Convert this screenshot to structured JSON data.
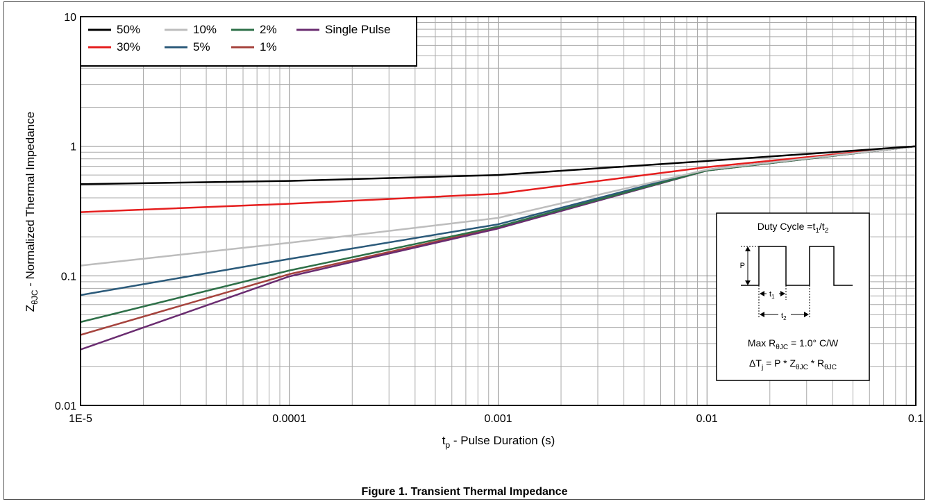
{
  "chart_data": {
    "type": "line",
    "title": "",
    "caption": "Figure 1. Transient Thermal Impedance",
    "xlabel": {
      "main": "t",
      "sub": "p",
      "rest": " - Pulse Duration (s)"
    },
    "ylabel": {
      "main": "Z",
      "sub": "θJC",
      "rest": " - Normalized Thermal Impedance"
    },
    "x_scale": "log",
    "y_scale": "log",
    "xlim": [
      1e-05,
      0.1
    ],
    "ylim": [
      0.01,
      10
    ],
    "x_ticks": [
      {
        "value": 1e-05,
        "label": "1E-5"
      },
      {
        "value": 0.0001,
        "label": "0.0001"
      },
      {
        "value": 0.001,
        "label": "0.001"
      },
      {
        "value": 0.01,
        "label": "0.01"
      },
      {
        "value": 0.1,
        "label": "0.1"
      }
    ],
    "y_ticks": [
      {
        "value": 0.01,
        "label": "0.01"
      },
      {
        "value": 0.1,
        "label": "0.1"
      },
      {
        "value": 1,
        "label": "1"
      },
      {
        "value": 10,
        "label": "10"
      }
    ],
    "grid": true,
    "legend_position": "top-left",
    "series": [
      {
        "name": "50%",
        "color": "#000000",
        "x": [
          1e-05,
          0.0001,
          0.001,
          0.01,
          0.1
        ],
        "y": [
          0.51,
          0.54,
          0.6,
          0.77,
          1.0
        ]
      },
      {
        "name": "10%",
        "color": "#bdbdbd",
        "x": [
          1e-05,
          0.0001,
          0.001,
          0.01,
          0.1
        ],
        "y": [
          0.12,
          0.18,
          0.28,
          0.66,
          1.0
        ]
      },
      {
        "name": "2%",
        "color": "#2e7048",
        "x": [
          1e-05,
          0.0001,
          0.001,
          0.01,
          0.1
        ],
        "y": [
          0.044,
          0.11,
          0.24,
          0.65,
          1.0
        ]
      },
      {
        "name": "Single Pulse",
        "color": "#6a2c70",
        "x": [
          1e-05,
          0.0001,
          0.001,
          0.01,
          0.1
        ],
        "y": [
          0.027,
          0.099,
          0.232,
          0.65,
          1.0
        ]
      },
      {
        "name": "30%",
        "color": "#e51e1e",
        "x": [
          1e-05,
          0.0001,
          0.001,
          0.01,
          0.1
        ],
        "y": [
          0.31,
          0.36,
          0.43,
          0.69,
          1.0
        ]
      },
      {
        "name": "5%",
        "color": "#2b5a7a",
        "x": [
          1e-05,
          0.0001,
          0.001,
          0.01,
          0.1
        ],
        "y": [
          0.071,
          0.135,
          0.25,
          0.66,
          1.0
        ]
      },
      {
        "name": "1%",
        "color": "#a6433d",
        "x": [
          1e-05,
          0.0001,
          0.001,
          0.01,
          0.1
        ],
        "y": [
          0.035,
          0.103,
          0.235,
          0.65,
          1.0
        ]
      }
    ],
    "inset": {
      "duty_cycle": {
        "main": "Duty Cycle =t",
        "s1": "1",
        "mid": "/t",
        "s2": "2"
      },
      "p_label": "P",
      "t1": {
        "main": "t",
        "sub": "1"
      },
      "t2": {
        "main": "t",
        "sub": "2"
      },
      "max_r": {
        "a": "Max R",
        "b": "θJC",
        "c": " = 1.0° C/W"
      },
      "delta_t": {
        "a": "ΔT",
        "b": "j",
        "c": " = P * Z",
        "d": "θJC",
        "e": " * R",
        "f": "θJC"
      }
    }
  }
}
